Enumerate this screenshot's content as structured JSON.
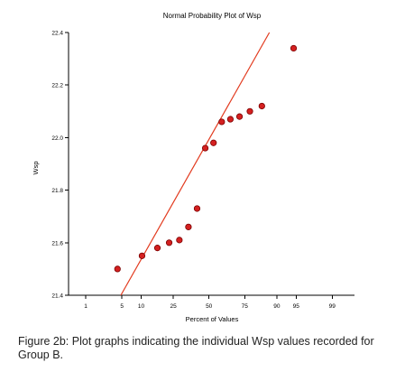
{
  "chart_data": {
    "type": "scatter",
    "title": "Normal Probability Plot of Wsp",
    "xlabel": "Percent of Values",
    "ylabel": "Wsp",
    "x_scale": "normal-probability",
    "x_ticks": [
      1,
      5,
      10,
      25,
      50,
      75,
      90,
      95,
      99
    ],
    "x_tick_labels": [
      "1",
      "5",
      "10",
      "25",
      "50",
      "75",
      "90",
      "95",
      "99"
    ],
    "xlim": [
      0.4,
      99.7
    ],
    "y_ticks": [
      21.4,
      21.6,
      21.8,
      22.0,
      22.2,
      22.4
    ],
    "y_tick_labels": [
      "21.4",
      "21.6",
      "21.8",
      "22.0",
      "22.2",
      "22.4"
    ],
    "ylim": [
      21.4,
      22.4
    ],
    "grid": false,
    "marker_color": "#d42020",
    "marker_edge_color": "#7a0000",
    "line_color": "#e23a1e",
    "series": [
      {
        "points": [
          {
            "x": 4.2,
            "y": 21.5
          },
          {
            "x": 10.3,
            "y": 21.55
          },
          {
            "x": 16.5,
            "y": 21.58
          },
          {
            "x": 22.6,
            "y": 21.6
          },
          {
            "x": 28.8,
            "y": 21.61
          },
          {
            "x": 34.9,
            "y": 21.66
          },
          {
            "x": 41.1,
            "y": 21.73
          },
          {
            "x": 47.2,
            "y": 21.96
          },
          {
            "x": 53.4,
            "y": 21.98
          },
          {
            "x": 59.5,
            "y": 22.06
          },
          {
            "x": 65.7,
            "y": 22.07
          },
          {
            "x": 71.8,
            "y": 22.08
          },
          {
            "x": 78.0,
            "y": 22.1
          },
          {
            "x": 84.1,
            "y": 22.12
          },
          {
            "x": 94.5,
            "y": 22.34
          }
        ]
      }
    ],
    "reference_line": {
      "points": [
        {
          "x": 4.8,
          "y": 21.4
        },
        {
          "x": 87.3,
          "y": 22.4
        }
      ]
    }
  },
  "caption": "Figure 2b: Plot graphs indicating the individual Wsp values recorded for Group B."
}
